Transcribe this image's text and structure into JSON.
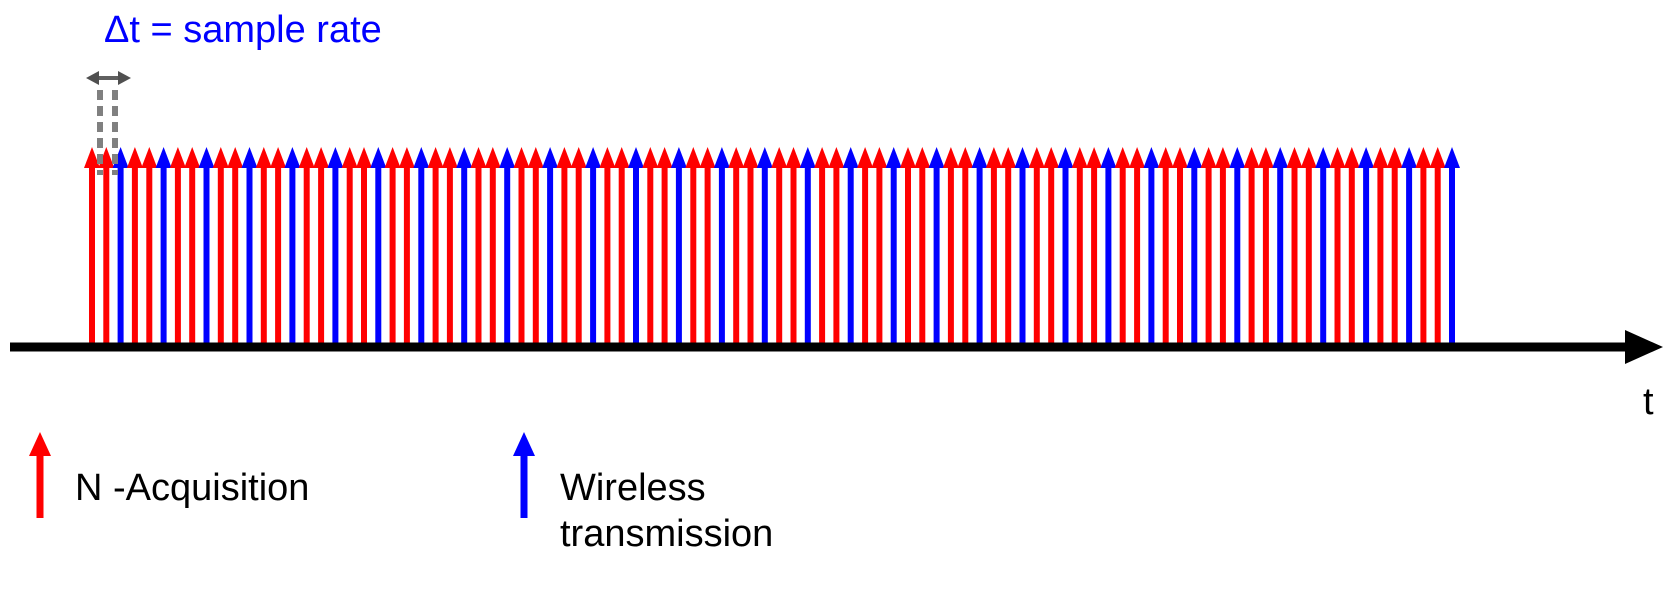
{
  "colors": {
    "acquisition": "#ff0000",
    "wireless": "#0000ff",
    "axis": "#000000",
    "delta_marker": "#808080",
    "delta_text": "#0000ff"
  },
  "annotation": {
    "delta_label": "Δt = sample rate"
  },
  "axis": {
    "label": "t"
  },
  "pulse_train": {
    "pattern_unit": [
      "acquisition",
      "wireless"
    ],
    "pulses_per_unit": [
      2,
      1
    ],
    "pulse_count": 96
  },
  "legend": {
    "acquisition_label": "N -Acquisition",
    "wireless_label": "Wireless transmission"
  }
}
